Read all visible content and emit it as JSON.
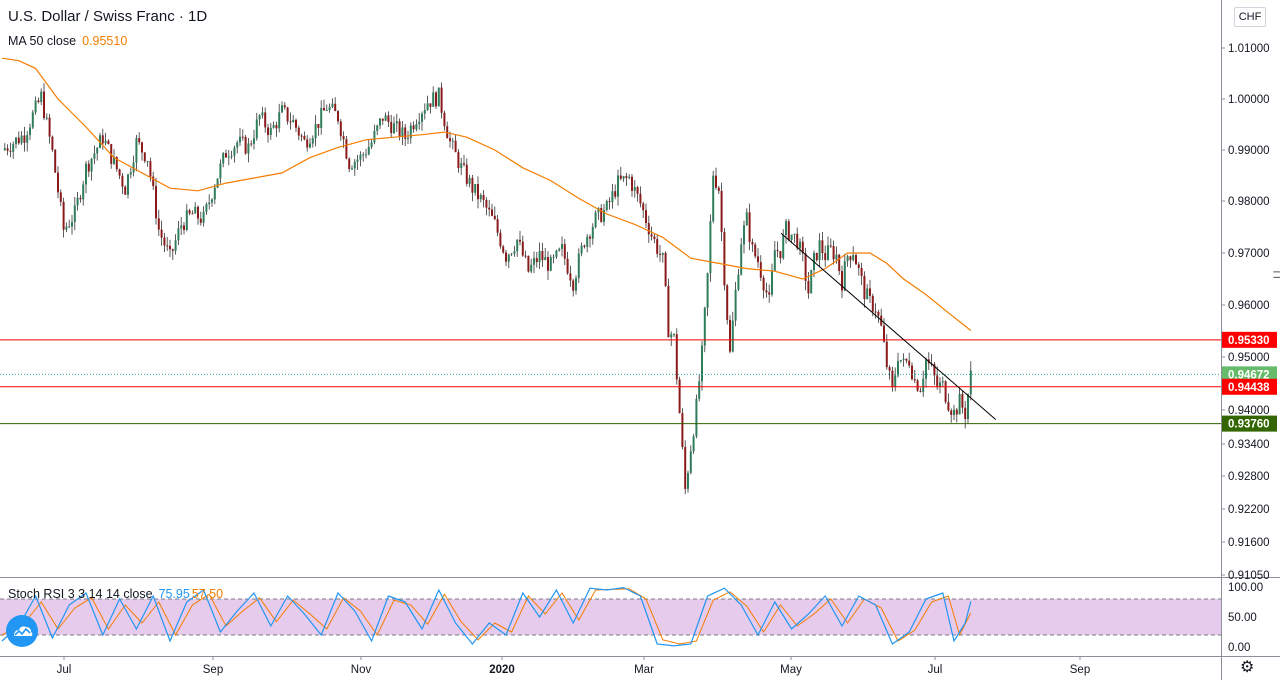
{
  "header": {
    "title": "U.S. Dollar / Swiss Franc · 1D",
    "ma_label": "MA 50 close",
    "ma_value": "0.95510",
    "currency": "CHF"
  },
  "colors": {
    "up": "#26a69a",
    "down": "#ef5350",
    "ma": "#f57c00",
    "stoch_k": "#2196f3",
    "stoch_d": "#f57c00",
    "stoch_band": "#e1bee7",
    "level_red": "#ff0000",
    "level_green": "#336600",
    "trendline": "#000000"
  },
  "chart_data": [
    {
      "type": "candlestick",
      "title": "U.S. Dollar / Swiss Franc · 1D",
      "ylim": [
        0.9105,
        1.014
      ],
      "y_ticks": [
        "1.01000",
        "1.00000",
        "0.99000",
        "0.98000",
        "0.97000",
        "0.96000",
        "0.95000",
        "0.94000",
        "0.93400",
        "0.92800",
        "0.92200",
        "0.91600",
        "0.91050"
      ],
      "x_ticks": [
        "Jul",
        "Sep",
        "Nov",
        "2020",
        "Mar",
        "May",
        "Jul",
        "Sep"
      ],
      "close_path": [
        [
          0,
          0.99
        ],
        [
          8,
          0.993
        ],
        [
          14,
          1.0005
        ],
        [
          18,
          0.9895
        ],
        [
          22,
          0.9745
        ],
        [
          26,
          0.9775
        ],
        [
          30,
          0.9865
        ],
        [
          36,
          0.9925
        ],
        [
          40,
          0.9875
        ],
        [
          44,
          0.9825
        ],
        [
          48,
          0.9915
        ],
        [
          52,
          0.9885
        ],
        [
          56,
          0.9745
        ],
        [
          60,
          0.969
        ],
        [
          64,
          0.9755
        ],
        [
          68,
          0.9775
        ],
        [
          72,
          0.9765
        ],
        [
          76,
          0.9835
        ],
        [
          80,
          0.9895
        ],
        [
          84,
          0.9915
        ],
        [
          88,
          0.9905
        ],
        [
          92,
          0.9965
        ],
        [
          96,
          0.9935
        ],
        [
          100,
          0.9975
        ],
        [
          104,
          0.9955
        ],
        [
          108,
          0.9915
        ],
        [
          112,
          0.9945
        ],
        [
          116,
          0.9985
        ],
        [
          120,
          0.9965
        ],
        [
          124,
          0.9875
        ],
        [
          128,
          0.9885
        ],
        [
          132,
          0.9915
        ],
        [
          136,
          0.9965
        ],
        [
          140,
          0.9945
        ],
        [
          144,
          0.9925
        ],
        [
          148,
          0.9965
        ],
        [
          152,
          0.9995
        ],
        [
          156,
          1.0005
        ],
        [
          160,
          0.9915
        ],
        [
          164,
          0.9865
        ],
        [
          168,
          0.9825
        ],
        [
          172,
          0.9795
        ],
        [
          176,
          0.9755
        ],
        [
          180,
          0.9695
        ],
        [
          184,
          0.9725
        ],
        [
          188,
          0.9665
        ],
        [
          192,
          0.9695
        ],
        [
          196,
          0.9675
        ],
        [
          200,
          0.9705
        ],
        [
          204,
          0.9645
        ],
        [
          208,
          0.9725
        ],
        [
          212,
          0.9765
        ],
        [
          216,
          0.9785
        ],
        [
          220,
          0.9835
        ],
        [
          224,
          0.9845
        ],
        [
          228,
          0.9795
        ],
        [
          232,
          0.9735
        ],
        [
          236,
          0.9685
        ],
        [
          238,
          0.9555
        ],
        [
          240,
          0.9535
        ],
        [
          242,
          0.9395
        ],
        [
          244,
          0.9255
        ],
        [
          246,
          0.9335
        ],
        [
          248,
          0.9405
        ],
        [
          250,
          0.9505
        ],
        [
          252,
          0.9655
        ],
        [
          254,
          0.9855
        ],
        [
          256,
          0.9825
        ],
        [
          258,
          0.9655
        ],
        [
          260,
          0.9505
        ],
        [
          262,
          0.9625
        ],
        [
          264,
          0.9725
        ],
        [
          266,
          0.9765
        ],
        [
          268,
          0.9705
        ],
        [
          270,
          0.9685
        ],
        [
          272,
          0.9645
        ],
        [
          274,
          0.9605
        ],
        [
          276,
          0.9705
        ],
        [
          278,
          0.9705
        ],
        [
          280,
          0.9745
        ],
        [
          282,
          0.9735
        ],
        [
          284,
          0.9725
        ],
        [
          286,
          0.9685
        ],
        [
          288,
          0.9625
        ],
        [
          290,
          0.9685
        ],
        [
          292,
          0.9715
        ],
        [
          294,
          0.9695
        ],
        [
          296,
          0.9705
        ],
        [
          298,
          0.9695
        ],
        [
          300,
          0.9645
        ],
        [
          302,
          0.9695
        ],
        [
          304,
          0.9705
        ],
        [
          306,
          0.9665
        ],
        [
          308,
          0.9625
        ],
        [
          310,
          0.9605
        ],
        [
          312,
          0.9595
        ],
        [
          314,
          0.9555
        ],
        [
          316,
          0.9485
        ],
        [
          318,
          0.9435
        ],
        [
          320,
          0.9505
        ],
        [
          322,
          0.9485
        ],
        [
          324,
          0.9495
        ],
        [
          326,
          0.9455
        ],
        [
          328,
          0.9445
        ],
        [
          330,
          0.9495
        ],
        [
          332,
          0.9475
        ],
        [
          334,
          0.9445
        ],
        [
          336,
          0.9445
        ],
        [
          338,
          0.9415
        ],
        [
          340,
          0.9395
        ],
        [
          342,
          0.9415
        ],
        [
          344,
          0.9395
        ],
        [
          346,
          0.9465
        ]
      ],
      "ma50_path": [
        [
          0,
          1.008
        ],
        [
          6,
          1.0075
        ],
        [
          12,
          1.006
        ],
        [
          20,
          1.0
        ],
        [
          30,
          0.9945
        ],
        [
          40,
          0.9885
        ],
        [
          50,
          0.9855
        ],
        [
          60,
          0.9825
        ],
        [
          70,
          0.982
        ],
        [
          80,
          0.9835
        ],
        [
          90,
          0.9845
        ],
        [
          100,
          0.9855
        ],
        [
          110,
          0.9885
        ],
        [
          120,
          0.9905
        ],
        [
          130,
          0.992
        ],
        [
          140,
          0.9925
        ],
        [
          150,
          0.993
        ],
        [
          158,
          0.9935
        ],
        [
          166,
          0.9925
        ],
        [
          176,
          0.99
        ],
        [
          186,
          0.9865
        ],
        [
          196,
          0.984
        ],
        [
          206,
          0.9805
        ],
        [
          216,
          0.9775
        ],
        [
          226,
          0.9755
        ],
        [
          236,
          0.973
        ],
        [
          246,
          0.969
        ],
        [
          256,
          0.968
        ],
        [
          266,
          0.967
        ],
        [
          276,
          0.9665
        ],
        [
          286,
          0.965
        ],
        [
          294,
          0.967
        ],
        [
          302,
          0.97
        ],
        [
          310,
          0.97
        ],
        [
          316,
          0.968
        ],
        [
          322,
          0.965
        ],
        [
          330,
          0.962
        ],
        [
          338,
          0.9585
        ],
        [
          346,
          0.9551
        ]
      ],
      "levels": [
        {
          "label": "0.95330",
          "value": 0.9533,
          "color": "#ff0000"
        },
        {
          "label": "0.94438",
          "value": 0.94438,
          "color": "#ff0000"
        },
        {
          "label": "0.93760",
          "value": 0.9376,
          "color": "#336600"
        }
      ],
      "last_price": {
        "label": "0.94672",
        "value": 0.94672
      },
      "trendline": [
        [
          0.8,
          0.9738
        ],
        [
          1.0,
          0.9383
        ]
      ]
    },
    {
      "type": "line",
      "title": "Stoch RSI 3 3 14 14 close",
      "k_value": "75.95",
      "d_value": "57.50",
      "ylim": [
        0,
        100
      ],
      "y_ticks": [
        "100.00",
        "50.00",
        "0.00"
      ],
      "band": [
        20,
        80
      ],
      "k_path": [
        [
          0,
          10
        ],
        [
          6,
          35
        ],
        [
          12,
          85
        ],
        [
          18,
          15
        ],
        [
          24,
          70
        ],
        [
          30,
          90
        ],
        [
          36,
          20
        ],
        [
          42,
          80
        ],
        [
          48,
          30
        ],
        [
          54,
          85
        ],
        [
          60,
          10
        ],
        [
          66,
          75
        ],
        [
          72,
          95
        ],
        [
          78,
          25
        ],
        [
          84,
          60
        ],
        [
          90,
          90
        ],
        [
          96,
          35
        ],
        [
          102,
          85
        ],
        [
          108,
          55
        ],
        [
          114,
          20
        ],
        [
          120,
          90
        ],
        [
          126,
          60
        ],
        [
          132,
          10
        ],
        [
          138,
          85
        ],
        [
          144,
          75
        ],
        [
          150,
          30
        ],
        [
          156,
          95
        ],
        [
          162,
          40
        ],
        [
          168,
          5
        ],
        [
          174,
          40
        ],
        [
          180,
          20
        ],
        [
          186,
          90
        ],
        [
          192,
          50
        ],
        [
          198,
          95
        ],
        [
          204,
          40
        ],
        [
          210,
          98
        ],
        [
          216,
          95
        ],
        [
          222,
          99
        ],
        [
          228,
          85
        ],
        [
          234,
          5
        ],
        [
          240,
          2
        ],
        [
          246,
          5
        ],
        [
          252,
          85
        ],
        [
          258,
          98
        ],
        [
          264,
          70
        ],
        [
          270,
          20
        ],
        [
          276,
          75
        ],
        [
          282,
          30
        ],
        [
          288,
          55
        ],
        [
          294,
          85
        ],
        [
          300,
          35
        ],
        [
          306,
          85
        ],
        [
          312,
          70
        ],
        [
          318,
          5
        ],
        [
          324,
          25
        ],
        [
          330,
          80
        ],
        [
          336,
          90
        ],
        [
          340,
          10
        ],
        [
          344,
          40
        ],
        [
          346,
          76
        ]
      ],
      "d_path": [
        [
          0,
          20
        ],
        [
          8,
          40
        ],
        [
          14,
          75
        ],
        [
          20,
          30
        ],
        [
          26,
          65
        ],
        [
          32,
          82
        ],
        [
          38,
          30
        ],
        [
          44,
          70
        ],
        [
          50,
          40
        ],
        [
          56,
          75
        ],
        [
          62,
          20
        ],
        [
          68,
          70
        ],
        [
          74,
          88
        ],
        [
          80,
          35
        ],
        [
          86,
          60
        ],
        [
          92,
          82
        ],
        [
          98,
          42
        ],
        [
          104,
          78
        ],
        [
          110,
          55
        ],
        [
          116,
          30
        ],
        [
          122,
          82
        ],
        [
          128,
          60
        ],
        [
          134,
          20
        ],
        [
          140,
          78
        ],
        [
          146,
          70
        ],
        [
          152,
          38
        ],
        [
          158,
          88
        ],
        [
          164,
          42
        ],
        [
          170,
          12
        ],
        [
          176,
          40
        ],
        [
          182,
          25
        ],
        [
          188,
          85
        ],
        [
          194,
          55
        ],
        [
          200,
          90
        ],
        [
          206,
          45
        ],
        [
          212,
          95
        ],
        [
          218,
          96
        ],
        [
          224,
          97
        ],
        [
          230,
          80
        ],
        [
          236,
          12
        ],
        [
          242,
          5
        ],
        [
          248,
          10
        ],
        [
          254,
          78
        ],
        [
          260,
          92
        ],
        [
          266,
          68
        ],
        [
          272,
          25
        ],
        [
          278,
          70
        ],
        [
          284,
          35
        ],
        [
          290,
          55
        ],
        [
          296,
          80
        ],
        [
          302,
          40
        ],
        [
          308,
          80
        ],
        [
          314,
          65
        ],
        [
          320,
          10
        ],
        [
          326,
          28
        ],
        [
          332,
          75
        ],
        [
          338,
          85
        ],
        [
          342,
          20
        ],
        [
          346,
          57
        ]
      ]
    }
  ]
}
